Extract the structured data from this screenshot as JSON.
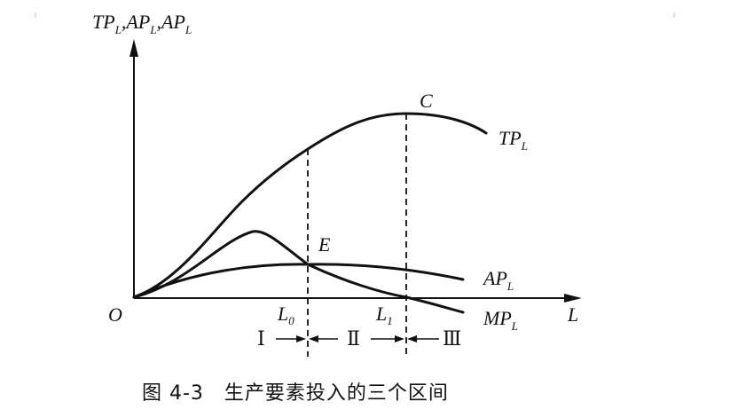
{
  "diagram": {
    "y_axis_label": {
      "parts": [
        "TP",
        "L",
        ",AP",
        "L",
        ",AP",
        "L"
      ]
    },
    "x_axis_label": "L",
    "origin_label": "O",
    "point_labels": {
      "C": "C",
      "E": "E"
    },
    "curve_labels": {
      "tp": {
        "main": "TP",
        "sub": "L"
      },
      "ap": {
        "main": "AP",
        "sub": "L"
      },
      "mp": {
        "main": "MP",
        "sub": "L"
      }
    },
    "x_markers": {
      "l0": {
        "main": "L",
        "sub": "0"
      },
      "l1": {
        "main": "L",
        "sub": "1"
      }
    },
    "regions": {
      "r1": "Ⅰ",
      "r2": "Ⅱ",
      "r3": "Ⅲ"
    },
    "caption": "图 4-3　生产要素投入的三个区间"
  }
}
